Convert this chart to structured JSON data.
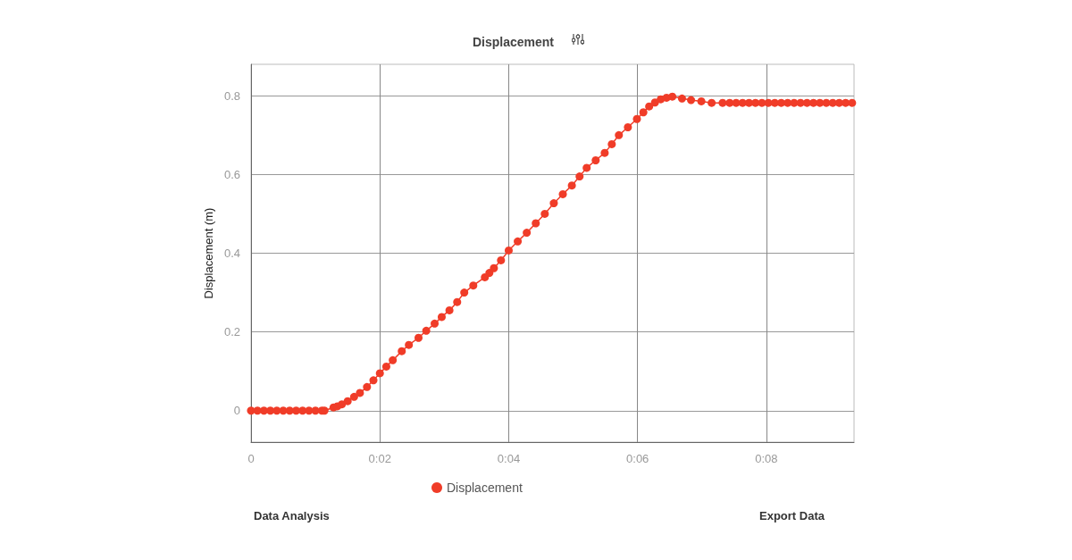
{
  "chart_data": {
    "type": "line",
    "title": "Displacement",
    "ylabel": "Displacement (m)",
    "annotations": [
      "Data Analysis",
      "Export Data"
    ],
    "x": [
      0,
      0.1,
      0.2,
      0.3,
      0.4,
      0.5,
      0.6,
      0.7,
      0.8,
      0.9,
      1.0,
      1.1,
      1.14,
      1.28,
      1.34,
      1.41,
      1.5,
      1.6,
      1.69,
      1.8,
      1.9,
      2.0,
      2.1,
      2.2,
      2.34,
      2.45,
      2.6,
      2.72,
      2.85,
      2.96,
      3.08,
      3.2,
      3.31,
      3.45,
      3.63,
      3.7,
      3.77,
      3.88,
      4.0,
      4.14,
      4.28,
      4.42,
      4.56,
      4.7,
      4.84,
      4.98,
      5.1,
      5.21,
      5.35,
      5.49,
      5.6,
      5.71,
      5.85,
      5.99,
      6.09,
      6.18,
      6.27,
      6.36,
      6.45,
      6.54,
      6.69,
      6.83,
      6.99,
      7.15,
      7.32,
      7.43,
      7.53,
      7.63,
      7.73,
      7.83,
      7.93,
      8.03,
      8.13,
      8.23,
      8.33,
      8.43,
      8.53,
      8.63,
      8.73,
      8.83,
      8.93,
      9.03,
      9.13,
      9.23,
      9.33
    ],
    "series": [
      {
        "name": "Displacement",
        "color": "#f03c28",
        "values": [
          0,
          0,
          0,
          0,
          0,
          0,
          0,
          0,
          0,
          0,
          0,
          0,
          0,
          0.008,
          0.011,
          0.016,
          0.024,
          0.035,
          0.045,
          0.06,
          0.077,
          0.095,
          0.112,
          0.128,
          0.151,
          0.167,
          0.185,
          0.203,
          0.221,
          0.238,
          0.255,
          0.276,
          0.3,
          0.318,
          0.339,
          0.35,
          0.362,
          0.382,
          0.407,
          0.43,
          0.452,
          0.476,
          0.5,
          0.527,
          0.55,
          0.572,
          0.595,
          0.617,
          0.636,
          0.655,
          0.677,
          0.7,
          0.72,
          0.741,
          0.758,
          0.773,
          0.783,
          0.791,
          0.795,
          0.798,
          0.793,
          0.789,
          0.786,
          0.782,
          0.782,
          0.782,
          0.782,
          0.782,
          0.782,
          0.782,
          0.782,
          0.782,
          0.782,
          0.782,
          0.782,
          0.782,
          0.782,
          0.782,
          0.782,
          0.782,
          0.782,
          0.782,
          0.782,
          0.782,
          0.782
        ]
      }
    ],
    "xlim": [
      0,
      9.36
    ],
    "xticks": [
      0,
      {
        "value": 2,
        "label": "0:02"
      },
      {
        "value": 4,
        "label": "0:04"
      },
      {
        "value": 6,
        "label": "0:06"
      },
      {
        "value": 8,
        "label": "0:08"
      }
    ],
    "ylim": [
      -0.08,
      0.88
    ],
    "yticks": [
      0,
      0.2,
      0.4,
      0.6,
      0.8
    ],
    "grid": true,
    "legend": "bottom",
    "marker": "circle"
  }
}
